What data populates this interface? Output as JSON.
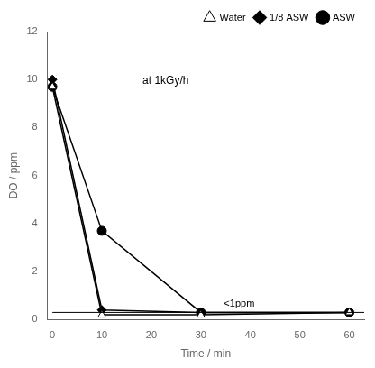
{
  "chart_data": {
    "type": "line",
    "x_label": "Time / min",
    "y_label": "DO / ppm",
    "x": [
      0,
      10,
      30,
      60
    ],
    "series": [
      {
        "name": "Water",
        "color": "black",
        "marker": "triangle_open",
        "values": [
          9.7,
          0.2,
          0.2,
          0.3
        ]
      },
      {
        "name": "1/8 ASW",
        "color": "black",
        "marker": "diamond",
        "values": [
          10.0,
          0.4,
          0.3,
          0.3
        ]
      },
      {
        "name": "ASW",
        "color": "black",
        "marker": "circle",
        "values": [
          9.7,
          3.7,
          0.3,
          0.3
        ]
      }
    ],
    "xlim": [
      -1,
      63
    ],
    "ylim": [
      0,
      12
    ],
    "xticks": [
      0,
      10,
      20,
      30,
      40,
      50,
      60
    ],
    "yticks": [
      0,
      2,
      4,
      6,
      8,
      10,
      12
    ],
    "reference_lines": [
      {
        "y": 0.3,
        "x_start": 0,
        "x_end": 63,
        "label": "<1ppm"
      }
    ],
    "annotations": [
      "at 1kGy/h"
    ],
    "grid": false,
    "legend": "upper right"
  }
}
